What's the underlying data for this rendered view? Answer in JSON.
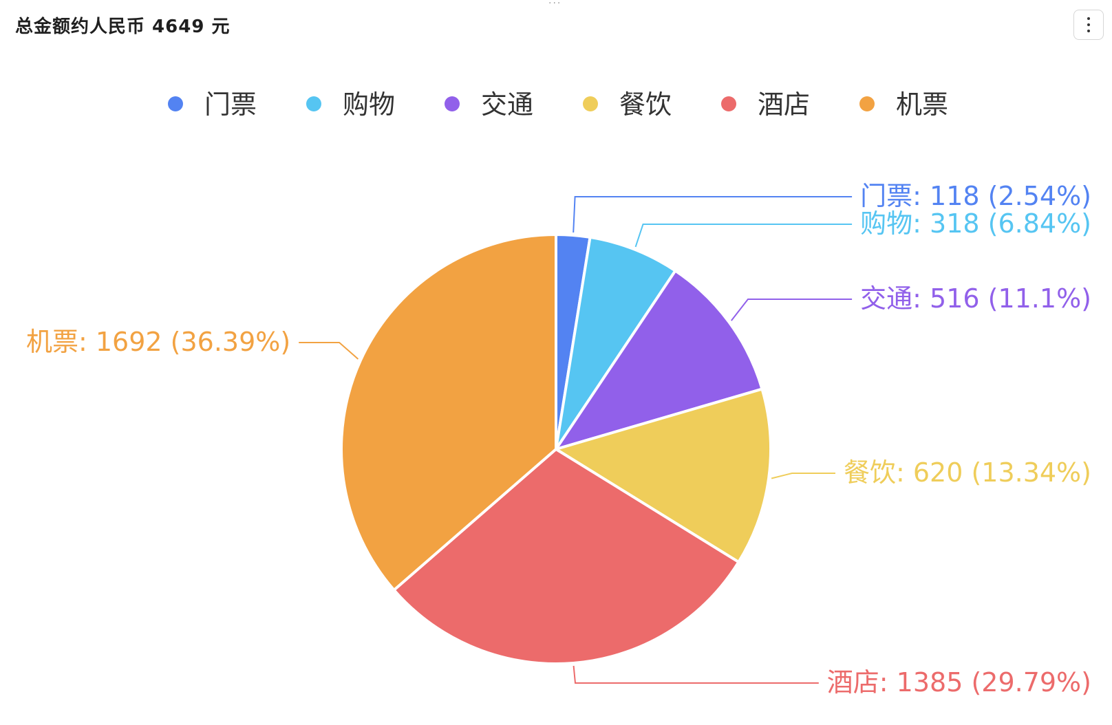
{
  "header": {
    "title": "总金额约人民币 4649 元",
    "drag_handle": "···"
  },
  "chart_data": {
    "type": "pie",
    "slices": [
      {
        "name": "门票",
        "value": 118,
        "percent": "2.54%",
        "color": "#5383f2"
      },
      {
        "name": "购物",
        "value": 318,
        "percent": "6.84%",
        "color": "#56c5f2"
      },
      {
        "name": "交通",
        "value": 516,
        "percent": "11.1%",
        "color": "#9160ea"
      },
      {
        "name": "餐饮",
        "value": 620,
        "percent": "13.34%",
        "color": "#efcd5a"
      },
      {
        "name": "酒店",
        "value": 1385,
        "percent": "29.79%",
        "color": "#ec6b6b"
      },
      {
        "name": "机票",
        "value": 1692,
        "percent": "36.39%",
        "color": "#f2a242"
      }
    ],
    "legend_position": "top"
  }
}
